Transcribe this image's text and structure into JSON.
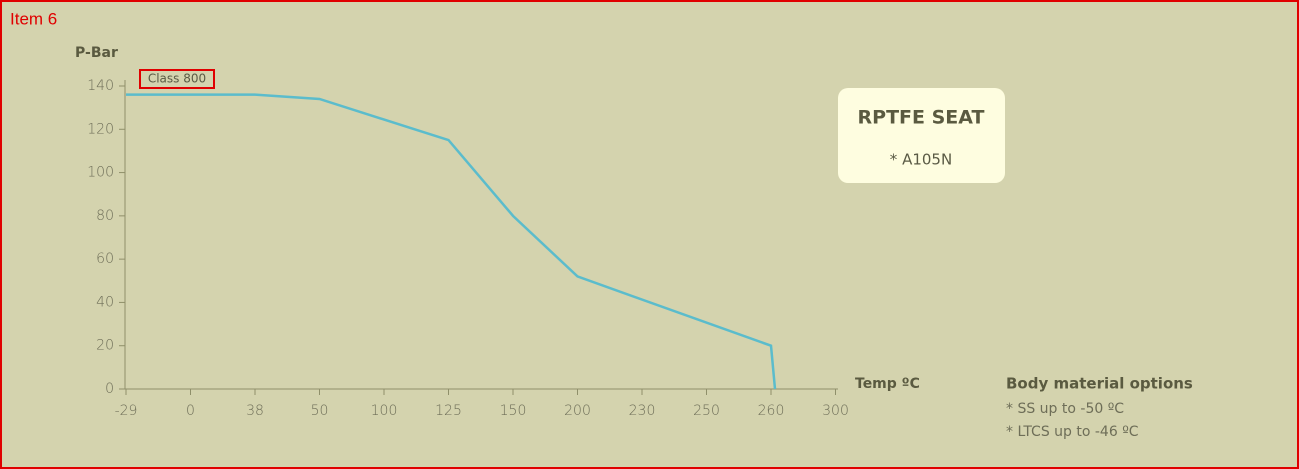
{
  "label": "Item 6",
  "chart_data": {
    "type": "line",
    "ylabel": "P-Bar",
    "xlabel": "Temp ºC",
    "annotation": "Class 800",
    "box_title": "RPTFE SEAT",
    "box_text": "* A105N",
    "notes_title": "Body material options",
    "notes": [
      "* SS up to -50 ºC",
      "* LTCS up to -46 ºC"
    ],
    "categories": [
      "-29",
      "0",
      "38",
      "50",
      "100",
      "125",
      "150",
      "200",
      "230",
      "250",
      "260",
      "300"
    ],
    "ylim": [
      0,
      140
    ],
    "yticks": [
      0,
      20,
      40,
      60,
      80,
      100,
      120,
      140
    ],
    "series": [
      {
        "color": "#5bbccc",
        "x": [
          "-29",
          "38",
          "50",
          "125",
          "150",
          "200",
          "260",
          "260"
        ],
        "values": [
          136,
          136,
          134,
          115,
          80,
          52,
          20,
          0
        ]
      }
    ]
  }
}
